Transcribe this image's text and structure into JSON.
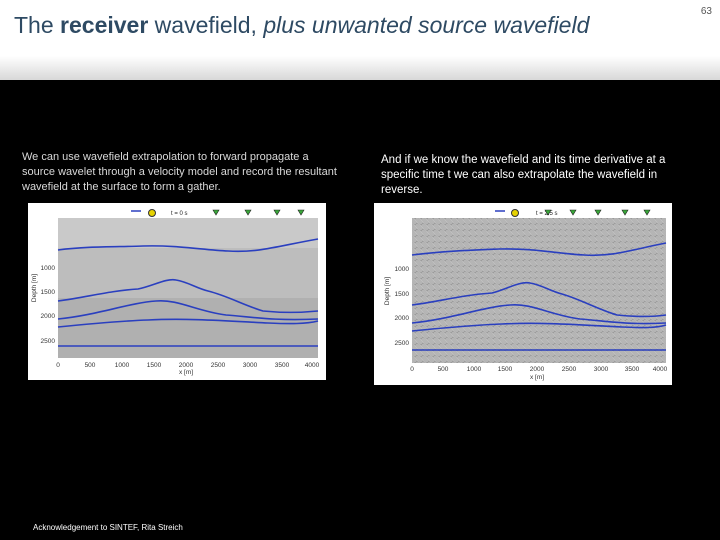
{
  "slide": {
    "title_part1": "The ",
    "title_bold": "receiver",
    "title_part2": " wavefield, ",
    "title_italic": "plus unwanted source wavefield",
    "page_number": "63",
    "left_caption": "We can use wavefield extrapolation to forward propagate a source wavelet through a velocity model and record the resultant  wavefield at the surface to form a gather.",
    "right_caption": "And if we know the wavefield and its time derivative at a specific time t we can also extrapolate the wavefield in reverse.",
    "acknowledgement": "Acknowledgement to SINTEF, Rita Streich"
  },
  "plots": {
    "y_label": "Depth [m]",
    "x_label": "x [m]",
    "y_ticks": [
      "1000",
      "1500",
      "2000",
      "2500"
    ],
    "x_ticks": [
      "0",
      "500",
      "1000",
      "1500",
      "2000",
      "2500",
      "3000",
      "3500",
      "4000"
    ],
    "left_time": "t = 0 s",
    "right_time": "t = 2.5 s",
    "line_color": "#2a3fbf"
  }
}
